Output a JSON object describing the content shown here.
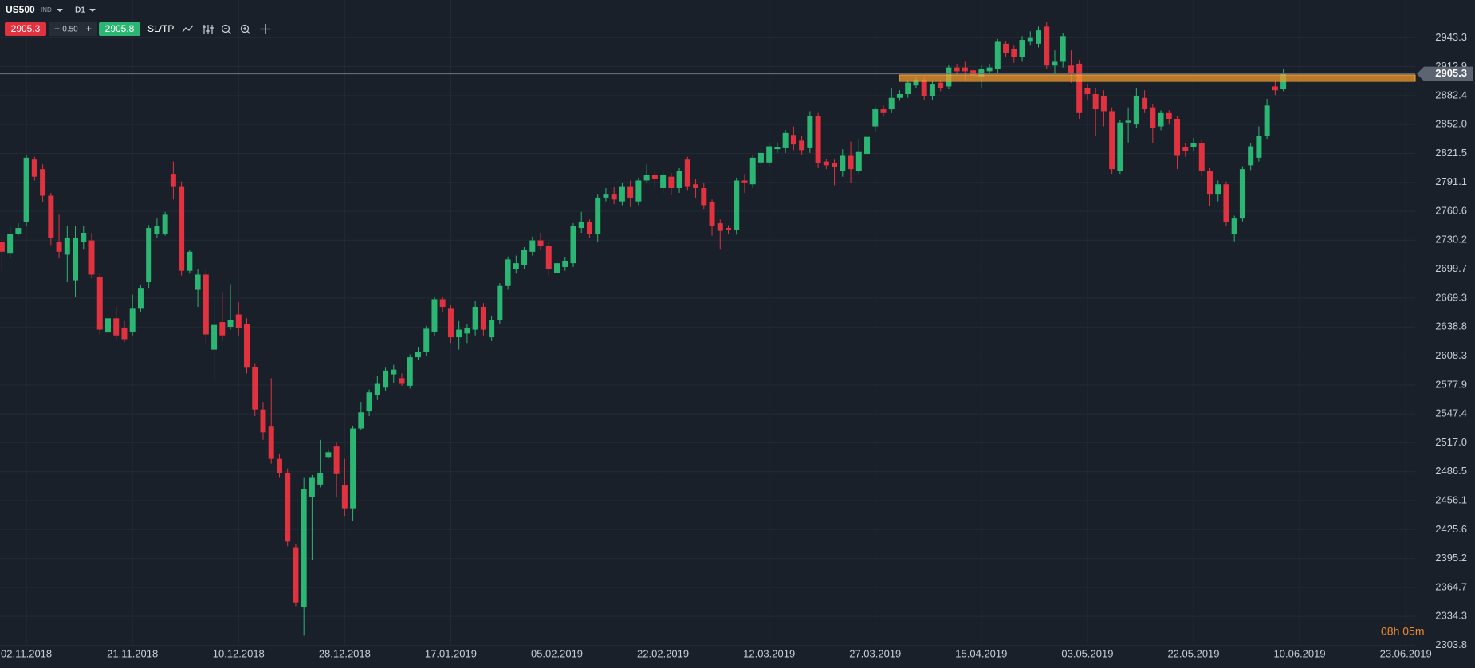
{
  "toolbar": {
    "symbol": "US500",
    "market": "IND",
    "timeframe": "D1",
    "sell": "2905.3",
    "spread": "0.50",
    "buy": "2905.8",
    "sltp": "SL/TP"
  },
  "timer": "08h 05m",
  "chart_data": {
    "type": "candlestick",
    "up_color": "#2bb673",
    "down_color": "#e0323f",
    "grid": true,
    "last_price": 2905.3,
    "categories": [
      null,
      null,
      null,
      "02.11.2018",
      null,
      null,
      null,
      null,
      null,
      null,
      null,
      null,
      null,
      null,
      null,
      null,
      "21.11.2018",
      null,
      null,
      null,
      null,
      null,
      null,
      null,
      null,
      null,
      null,
      null,
      null,
      "10.12.2018",
      null,
      null,
      null,
      null,
      null,
      null,
      null,
      null,
      null,
      null,
      null,
      null,
      "28.12.2018",
      null,
      null,
      null,
      null,
      null,
      null,
      null,
      null,
      null,
      null,
      null,
      null,
      "17.01.2019",
      null,
      null,
      null,
      null,
      null,
      null,
      null,
      null,
      null,
      null,
      null,
      null,
      "05.02.2019",
      null,
      null,
      null,
      null,
      null,
      null,
      null,
      null,
      null,
      null,
      null,
      null,
      "22.02.2019",
      null,
      null,
      null,
      null,
      null,
      null,
      null,
      null,
      null,
      null,
      null,
      null,
      "12.03.2019",
      null,
      null,
      null,
      null,
      null,
      null,
      null,
      null,
      null,
      null,
      null,
      null,
      "27.03.2019",
      null,
      null,
      null,
      null,
      null,
      null,
      null,
      null,
      null,
      null,
      null,
      null,
      "15.04.2019",
      null,
      null,
      null,
      null,
      null,
      null,
      null,
      null,
      null,
      null,
      null,
      null,
      "03.05.2019",
      null,
      null,
      null,
      null,
      null,
      null,
      null,
      null,
      null,
      null,
      null,
      null,
      "22.05.2019",
      null,
      null,
      null,
      null,
      null,
      null,
      null,
      null,
      null,
      null,
      null,
      null,
      "10.06.2019",
      null,
      null,
      null,
      null,
      null,
      null,
      null,
      null,
      null,
      null,
      null,
      null,
      "23.06.2019"
    ],
    "open": [
      2728,
      2716,
      2737,
      2749,
      2815,
      2805,
      2777,
      2728,
      2715,
      2688,
      2728,
      2730,
      2691,
      2633,
      2648,
      2638,
      2634,
      2658,
      2686,
      2737,
      2737,
      2800,
      2787,
      2698,
      2678,
      2694,
      2615,
      2644,
      2639,
      2652,
      2642,
      2597,
      2552,
      2534,
      2500,
      2485,
      2407,
      2344,
      2460,
      2473,
      2502,
      2513,
      2472,
      2448,
      2532,
      2550,
      2567,
      2575,
      2589,
      2585,
      2577,
      2607,
      2613,
      2634,
      2668,
      2658,
      2628,
      2632,
      2636,
      2660,
      2628,
      2646,
      2682,
      2700,
      2704,
      2718,
      2730,
      2724,
      2696,
      2702,
      2706,
      2743,
      2749,
      2737,
      2775,
      2779,
      2771,
      2787,
      2771,
      2793,
      2799,
      2785,
      2797,
      2785,
      2815,
      2789,
      2785,
      2770,
      2748,
      2743,
      2741,
      2793,
      2789,
      2812,
      2812,
      2826,
      2827,
      2841,
      2835,
      2827,
      2861,
      2813,
      2811,
      2803,
      2819,
      2803,
      2821,
      2850,
      2868,
      2868,
      2880,
      2884,
      2893,
      2899,
      2882,
      2896,
      2892,
      2912,
      2912,
      2909,
      2902,
      2908,
      2910,
      2937,
      2931,
      2923,
      2939,
      2937,
      2955,
      2914,
      2918,
      2914,
      2916,
      2890,
      2884,
      2882,
      2866,
      2803,
      2854,
      2852,
      2880,
      2870,
      2850,
      2864,
      2858,
      2828,
      2828,
      2832,
      2803,
      2779,
      2789,
      2737,
      2753,
      2809,
      2817,
      2840,
      2892,
      2889,
      null,
      null,
      null,
      null,
      null,
      null,
      null,
      null,
      null,
      null,
      null,
      null,
      null,
      null,
      null
    ],
    "high": [
      2735,
      2745,
      2748,
      2820,
      2818,
      2810,
      2780,
      2757,
      2745,
      2745,
      2745,
      2738,
      2695,
      2652,
      2660,
      2645,
      2673,
      2683,
      2746,
      2753,
      2760,
      2813,
      2792,
      2720,
      2700,
      2700,
      2666,
      2676,
      2684,
      2665,
      2648,
      2600,
      2560,
      2585,
      2505,
      2490,
      2410,
      2480,
      2483,
      2520,
      2510,
      2517,
      2500,
      2535,
      2560,
      2573,
      2587,
      2596,
      2599,
      2590,
      2610,
      2618,
      2640,
      2671,
      2671,
      2662,
      2645,
      2642,
      2666,
      2664,
      2650,
      2685,
      2713,
      2714,
      2723,
      2734,
      2738,
      2728,
      2712,
      2712,
      2748,
      2760,
      2752,
      2779,
      2785,
      2786,
      2791,
      2793,
      2796,
      2810,
      2804,
      2803,
      2801,
      2806,
      2818,
      2795,
      2790,
      2773,
      2752,
      2746,
      2796,
      2800,
      2820,
      2826,
      2832,
      2833,
      2846,
      2850,
      2840,
      2866,
      2864,
      2816,
      2815,
      2826,
      2834,
      2836,
      2842,
      2871,
      2872,
      2890,
      2888,
      2899,
      2902,
      2903,
      2897,
      2899,
      2915,
      2916,
      2918,
      2913,
      2914,
      2916,
      2942,
      2940,
      2935,
      2945,
      2950,
      2955,
      2960,
      2930,
      2948,
      2930,
      2920,
      2895,
      2890,
      2888,
      2870,
      2857,
      2870,
      2890,
      2888,
      2873,
      2867,
      2867,
      2861,
      2832,
      2838,
      2836,
      2806,
      2793,
      2792,
      2756,
      2808,
      2832,
      2850,
      2879,
      2898,
      2910,
      null,
      null,
      null,
      null,
      null,
      null,
      null,
      null,
      null,
      null,
      null,
      null,
      null,
      null,
      null
    ],
    "low": [
      2698,
      2711,
      2735,
      2745,
      2793,
      2770,
      2725,
      2711,
      2686,
      2670,
      2721,
      2690,
      2631,
      2628,
      2626,
      2623,
      2630,
      2655,
      2680,
      2733,
      2735,
      2773,
      2693,
      2695,
      2660,
      2620,
      2582,
      2624,
      2636,
      2630,
      2590,
      2545,
      2520,
      2495,
      2480,
      2408,
      2345,
      2314,
      2394,
      2470,
      2500,
      2460,
      2440,
      2435,
      2530,
      2545,
      2562,
      2572,
      2580,
      2577,
      2574,
      2604,
      2608,
      2630,
      2655,
      2622,
      2615,
      2622,
      2630,
      2630,
      2624,
      2642,
      2678,
      2695,
      2700,
      2714,
      2720,
      2693,
      2676,
      2698,
      2702,
      2738,
      2733,
      2728,
      2771,
      2768,
      2767,
      2765,
      2767,
      2790,
      2785,
      2780,
      2778,
      2780,
      2783,
      2775,
      2763,
      2735,
      2721,
      2737,
      2736,
      2780,
      2785,
      2807,
      2808,
      2822,
      2822,
      2825,
      2820,
      2822,
      2806,
      2805,
      2788,
      2797,
      2790,
      2800,
      2817,
      2845,
      2860,
      2864,
      2877,
      2880,
      2890,
      2878,
      2878,
      2887,
      2889,
      2904,
      2898,
      2896,
      2890,
      2905,
      2906,
      2923,
      2917,
      2918,
      2935,
      2933,
      2910,
      2905,
      2912,
      2896,
      2858,
      2878,
      2840,
      2850,
      2800,
      2800,
      2833,
      2848,
      2864,
      2832,
      2846,
      2852,
      2805,
      2818,
      2824,
      2798,
      2766,
      2771,
      2745,
      2729,
      2750,
      2804,
      2813,
      2836,
      2883,
      2887,
      null,
      null,
      null,
      null,
      null,
      null,
      null,
      null,
      null,
      null,
      null,
      null,
      null,
      null,
      null
    ],
    "close": [
      2718,
      2737,
      2743,
      2817,
      2797,
      2777,
      2733,
      2718,
      2733,
      2733,
      2738,
      2694,
      2636,
      2648,
      2630,
      2626,
      2658,
      2680,
      2743,
      2745,
      2757,
      2787,
      2698,
      2718,
      2694,
      2631,
      2641,
      2630,
      2646,
      2638,
      2596,
      2552,
      2528,
      2500,
      2485,
      2413,
      2349,
      2468,
      2480,
      2485,
      2507,
      2484,
      2448,
      2532,
      2549,
      2570,
      2579,
      2593,
      2594,
      2579,
      2607,
      2613,
      2637,
      2668,
      2660,
      2628,
      2636,
      2638,
      2660,
      2636,
      2646,
      2682,
      2710,
      2706,
      2720,
      2730,
      2724,
      2700,
      2706,
      2708,
      2745,
      2749,
      2737,
      2775,
      2779,
      2773,
      2787,
      2775,
      2793,
      2799,
      2795,
      2799,
      2785,
      2803,
      2787,
      2785,
      2767,
      2745,
      2740,
      2741,
      2793,
      2791,
      2817,
      2822,
      2829,
      2828,
      2843,
      2831,
      2825,
      2861,
      2811,
      2809,
      2807,
      2819,
      2805,
      2823,
      2839,
      2868,
      2864,
      2880,
      2884,
      2896,
      2899,
      2882,
      2894,
      2890,
      2912,
      2908,
      2908,
      2904,
      2910,
      2912,
      2939,
      2927,
      2923,
      2941,
      2943,
      2951,
      2914,
      2918,
      2945,
      2906,
      2864,
      2884,
      2868,
      2866,
      2805,
      2854,
      2856,
      2882,
      2868,
      2848,
      2864,
      2858,
      2819,
      2824,
      2832,
      2803,
      2779,
      2789,
      2749,
      2753,
      2805,
      2829,
      2840,
      2872,
      2888,
      2905.3,
      null,
      null,
      null,
      null,
      null,
      null,
      null,
      null,
      null,
      null,
      null,
      null,
      null,
      null,
      null
    ],
    "ylim": [
      2303.4,
      2983
    ],
    "yticks": [
      2943.3,
      2912.9,
      2882.4,
      {
        "value": 2852,
        "label": "2852.0"
      },
      2821.5,
      2791.1,
      2760.6,
      2730.2,
      2699.7,
      2669.3,
      2638.8,
      2608.3,
      2577.9,
      2547.4,
      {
        "value": 2517,
        "label": "2517.0"
      },
      2486.5,
      2456.1,
      2425.6,
      2395.2,
      2364.7,
      2334.3,
      2303.8
    ]
  }
}
